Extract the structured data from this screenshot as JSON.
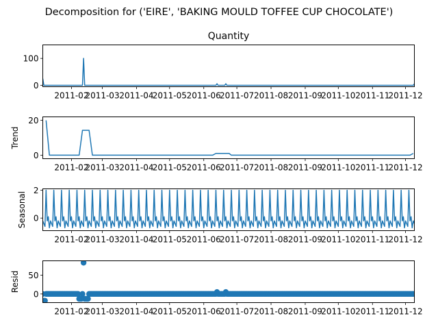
{
  "figure_title": "Decomposition for ('EIRE', 'BAKING MOULD TOFFEE CUP CHOCOLATE')",
  "chart_data": [
    {
      "type": "line",
      "title": "Quantity",
      "ylabel": "",
      "ylim": [
        -5,
        150
      ],
      "yticks": [
        0,
        100
      ],
      "xlim": [
        "2011-01-06",
        "2011-12-09"
      ],
      "xticks": [
        "2011-02",
        "2011-03",
        "2011-04",
        "2011-05",
        "2011-06",
        "2011-07",
        "2011-08",
        "2011-09",
        "2011-10",
        "2011-11",
        "2011-12"
      ],
      "color": "#1f77b4",
      "x": [
        "2011-01-06",
        "2011-01-07",
        "2011-02-11",
        "2011-02-12",
        "2011-02-13",
        "2011-06-12",
        "2011-06-13",
        "2011-06-14",
        "2011-06-20",
        "2011-06-21",
        "2011-06-22",
        "2011-12-08",
        "2011-12-09"
      ],
      "values": [
        25,
        0,
        0,
        100,
        0,
        0,
        6,
        0,
        0,
        6,
        0,
        0,
        6
      ]
    },
    {
      "type": "line",
      "title": "",
      "ylabel": "Trend",
      "ylim": [
        -2,
        22
      ],
      "yticks": [
        0,
        20
      ],
      "xlim": [
        "2011-01-06",
        "2011-12-09"
      ],
      "xticks": [
        "2011-02",
        "2011-03",
        "2011-04",
        "2011-05",
        "2011-06",
        "2011-07",
        "2011-08",
        "2011-09",
        "2011-10",
        "2011-11",
        "2011-12"
      ],
      "color": "#1f77b4",
      "x": [
        "2011-01-09",
        "2011-01-12",
        "2011-02-08",
        "2011-02-11",
        "2011-02-17",
        "2011-02-20",
        "2011-06-09",
        "2011-06-12",
        "2011-06-24",
        "2011-06-26",
        "2011-12-05",
        "2011-12-08"
      ],
      "values": [
        20,
        0,
        0,
        14.3,
        14.3,
        0,
        0,
        1,
        1,
        0,
        0,
        1
      ]
    },
    {
      "type": "line",
      "title": "",
      "ylabel": "Seasonal",
      "ylim": [
        -0.9,
        2.1
      ],
      "yticks": [
        0,
        2
      ],
      "xlim": [
        "2011-01-06",
        "2011-12-09"
      ],
      "xticks": [
        "2011-02",
        "2011-03",
        "2011-04",
        "2011-05",
        "2011-06",
        "2011-07",
        "2011-08",
        "2011-09",
        "2011-10",
        "2011-11",
        "2011-12"
      ],
      "color": "#1f77b4",
      "period_days": 7,
      "first_peak": "2011-01-09",
      "weekly_pattern": [
        2.0,
        -0.2,
        0.1,
        -0.7,
        -0.2,
        -0.4,
        -0.6
      ]
    },
    {
      "type": "scatter",
      "title": "",
      "ylabel": "Resid",
      "ylim": [
        -23,
        88
      ],
      "yticks": [
        0,
        50
      ],
      "xlim": [
        "2011-01-06",
        "2011-12-09"
      ],
      "xticks": [
        "2011-02",
        "2011-03",
        "2011-04",
        "2011-05",
        "2011-06",
        "2011-07",
        "2011-08",
        "2011-09",
        "2011-10",
        "2011-11",
        "2011-12"
      ],
      "color": "#1f77b4",
      "baseline": 0,
      "outliers": [
        {
          "x": "2011-01-07",
          "y": -18
        },
        {
          "x": "2011-01-08",
          "y": -18
        },
        {
          "x": "2011-02-08",
          "y": -13
        },
        {
          "x": "2011-02-09",
          "y": -13
        },
        {
          "x": "2011-02-10",
          "y": -13
        },
        {
          "x": "2011-02-12",
          "y": 83
        },
        {
          "x": "2011-02-13",
          "y": -13
        },
        {
          "x": "2011-02-14",
          "y": -13
        },
        {
          "x": "2011-02-15",
          "y": -13
        },
        {
          "x": "2011-02-16",
          "y": -13
        },
        {
          "x": "2011-06-13",
          "y": 5
        },
        {
          "x": "2011-06-21",
          "y": 5
        }
      ]
    }
  ]
}
